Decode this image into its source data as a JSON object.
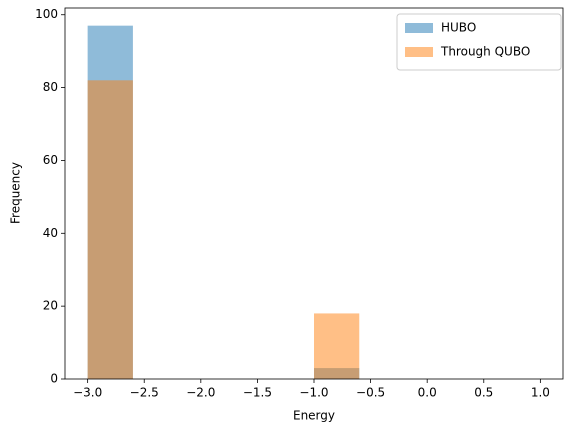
{
  "chart_data": {
    "type": "histogram",
    "xlabel": "Energy",
    "ylabel": "Frequency",
    "bins": [
      -3.0,
      -2.6,
      -2.2,
      -1.8,
      -1.4,
      -1.0,
      -0.6,
      -0.2,
      0.2,
      0.6,
      1.0
    ],
    "series": [
      {
        "name": "HUBO",
        "color": "#1f77b4",
        "values": [
          97,
          0,
          0,
          0,
          0,
          3,
          0,
          0,
          0,
          0
        ]
      },
      {
        "name": "Through QUBO",
        "color": "#ff7f0e",
        "values": [
          82,
          0,
          0,
          0,
          0,
          18,
          0,
          0,
          0,
          0
        ]
      }
    ],
    "alpha": 0.5,
    "xlim": [
      -3.2,
      1.2
    ],
    "xticks": [
      {
        "value": -3.0,
        "label": "−3.0"
      },
      {
        "value": -2.5,
        "label": "−2.5"
      },
      {
        "value": -2.0,
        "label": "−2.0"
      },
      {
        "value": -1.5,
        "label": "−1.5"
      },
      {
        "value": -1.0,
        "label": "−1.0"
      },
      {
        "value": -0.5,
        "label": "−0.5"
      },
      {
        "value": 0.0,
        "label": "0.0"
      },
      {
        "value": 0.5,
        "label": "0.5"
      },
      {
        "value": 1.0,
        "label": "1.0"
      }
    ],
    "ylim": [
      0,
      101.85
    ],
    "yticks": [
      0,
      20,
      40,
      60,
      80,
      100
    ],
    "legend": "upper right"
  }
}
